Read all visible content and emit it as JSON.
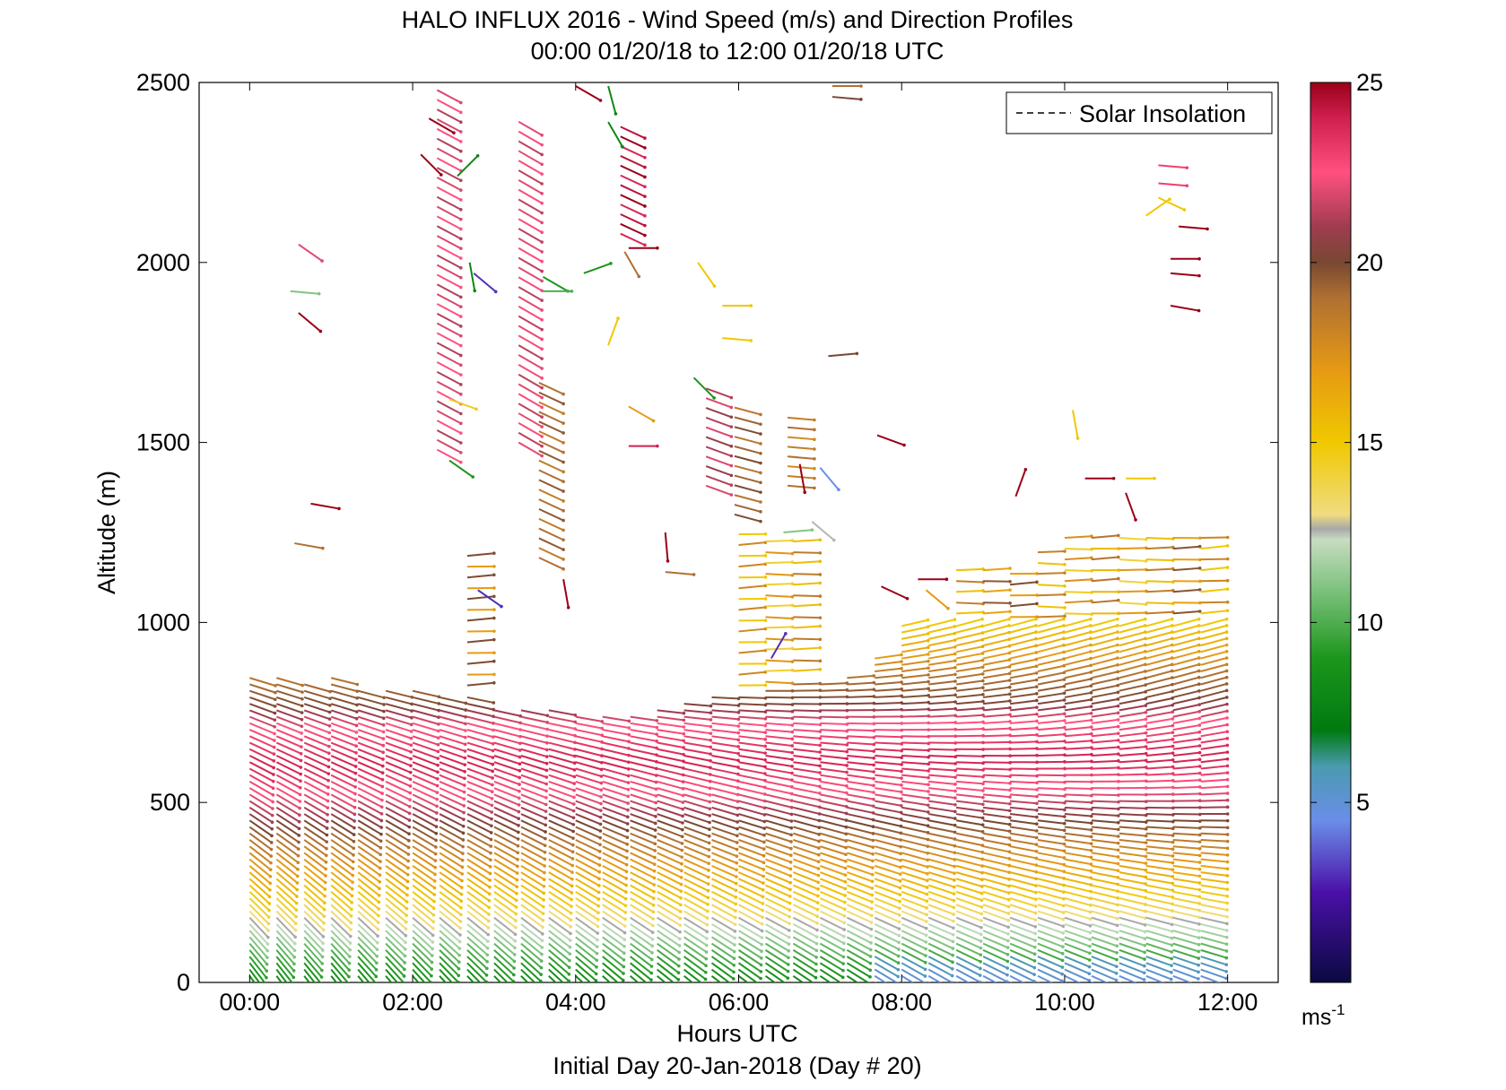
{
  "chart_data": {
    "type": "quiver",
    "title": "HALO INFLUX 2016 - Wind Speed (m/s) and Direction Profiles",
    "subtitle": "00:00 01/20/18 to 12:00 01/20/18  UTC",
    "xlabel": "Hours UTC",
    "footer": "Initial Day 20-Jan-2018 (Day # 20)",
    "ylabel": "Altitude (m)",
    "xlim": [
      -0.62,
      12.62
    ],
    "ylim": [
      0,
      2500
    ],
    "x_ticks": [
      0,
      2,
      4,
      6,
      8,
      10,
      12
    ],
    "x_tick_labels": [
      "00:00",
      "02:00",
      "04:00",
      "06:00",
      "08:00",
      "10:00",
      "12:00"
    ],
    "y_ticks": [
      0,
      500,
      1000,
      1500,
      2000,
      2500
    ],
    "y_tick_labels": [
      "0",
      "500",
      "1000",
      "1500",
      "2000",
      "2500"
    ],
    "legend": {
      "entries": [
        "Solar Insolation"
      ],
      "position": "top-right",
      "line_style": "dashed"
    },
    "colorbar": {
      "range": [
        0,
        25
      ],
      "ticks": [
        5,
        10,
        15,
        20,
        25
      ],
      "tick_labels": [
        "5",
        "10",
        "15",
        "20",
        "25"
      ],
      "unit_label": "ms",
      "unit_exponent": "-1",
      "color_stops": [
        {
          "v": 0,
          "c": "#0a0a40"
        },
        {
          "v": 2.5,
          "c": "#4a10a8"
        },
        {
          "v": 4.5,
          "c": "#6a8ee8"
        },
        {
          "v": 6,
          "c": "#4a9ab0"
        },
        {
          "v": 7,
          "c": "#007a10"
        },
        {
          "v": 9,
          "c": "#1c961c"
        },
        {
          "v": 11,
          "c": "#82c482"
        },
        {
          "v": 12.3,
          "c": "#c8dcc0"
        },
        {
          "v": 12.6,
          "c": "#a8a8a8"
        },
        {
          "v": 13,
          "c": "#f0dc80"
        },
        {
          "v": 15,
          "c": "#f0c800"
        },
        {
          "v": 17,
          "c": "#e69a14"
        },
        {
          "v": 19,
          "c": "#b07032"
        },
        {
          "v": 20,
          "c": "#784832"
        },
        {
          "v": 21,
          "c": "#a03c50"
        },
        {
          "v": 22.5,
          "c": "#ff5080"
        },
        {
          "v": 24,
          "c": "#d02050"
        },
        {
          "v": 25,
          "c": "#9a0018"
        }
      ]
    },
    "profile_times_h": [
      0,
      0.33,
      0.67,
      1,
      1.33,
      1.67,
      2,
      2.33,
      2.67,
      3,
      3.33,
      3.67,
      4,
      4.33,
      4.67,
      5,
      5.33,
      5.67,
      6,
      6.33,
      6.67,
      7,
      7.33,
      7.67,
      8,
      8.33,
      8.67,
      9,
      9.33,
      9.67,
      10,
      10.33,
      10.67,
      11,
      11.33,
      11.67
    ],
    "mixed_layer_top_m": [
      850,
      860,
      840,
      850,
      820,
      820,
      810,
      800,
      800,
      770,
      770,
      770,
      750,
      740,
      740,
      760,
      780,
      800,
      800,
      810,
      840,
      840,
      860,
      900,
      990,
      1000,
      1000,
      1000,
      990,
      990,
      1000,
      1000,
      1000,
      1000,
      1000,
      1000
    ],
    "upper_layer_top_m": [
      0,
      0,
      0,
      0,
      0,
      0,
      0,
      0,
      1200,
      0,
      0,
      0,
      0,
      0,
      0,
      0,
      0,
      0,
      1250,
      1250,
      1250,
      0,
      0,
      0,
      0,
      0,
      1150,
      1150,
      1150,
      1200,
      1250,
      1250,
      1250,
      1250,
      1250,
      1250
    ],
    "speed_profile_knots": [
      {
        "alt": 0,
        "speed": 8
      },
      {
        "alt": 80,
        "speed": 9.5
      },
      {
        "alt": 160,
        "speed": 12
      },
      {
        "alt": 260,
        "speed": 15
      },
      {
        "alt": 380,
        "speed": 18
      },
      {
        "alt": 450,
        "speed": 20
      },
      {
        "alt": 520,
        "speed": 22
      },
      {
        "alt": 620,
        "speed": 24
      },
      {
        "alt": 720,
        "speed": 22.5
      },
      {
        "alt": 780,
        "speed": 20
      },
      {
        "alt": 840,
        "speed": 19
      },
      {
        "alt": 900,
        "speed": 17
      },
      {
        "alt": 960,
        "speed": 15.5
      },
      {
        "alt": 1050,
        "speed": 14
      },
      {
        "alt": 1150,
        "speed": 16.5
      },
      {
        "alt": 1250,
        "speed": 18.5
      }
    ],
    "isolated_vectors": [
      {
        "t": 0.5,
        "alt": 1920,
        "speed": 11,
        "dir_deg": 5
      },
      {
        "t": 0.55,
        "alt": 1220,
        "speed": 19,
        "dir_deg": 10
      },
      {
        "t": 0.75,
        "alt": 1330,
        "speed": 25,
        "dir_deg": 10
      },
      {
        "t": 0.6,
        "alt": 1860,
        "speed": 25,
        "dir_deg": 40
      },
      {
        "t": 0.6,
        "alt": 2050,
        "speed": 22,
        "dir_deg": 35
      },
      {
        "t": 2.1,
        "alt": 2300,
        "speed": 25,
        "dir_deg": 45
      },
      {
        "t": 2.2,
        "alt": 2400,
        "speed": 25,
        "dir_deg": 30
      },
      {
        "t": 2.45,
        "alt": 1450,
        "speed": 9,
        "dir_deg": 35
      },
      {
        "t": 2.45,
        "alt": 1620,
        "speed": 14.5,
        "dir_deg": 20
      },
      {
        "t": 2.55,
        "alt": 2240,
        "speed": 8,
        "dir_deg": -45
      },
      {
        "t": 2.7,
        "alt": 2000,
        "speed": 8,
        "dir_deg": 80
      },
      {
        "t": 2.75,
        "alt": 1970,
        "speed": 3,
        "dir_deg": 40
      },
      {
        "t": 2.8,
        "alt": 1090,
        "speed": 3,
        "dir_deg": 35
      },
      {
        "t": 3.6,
        "alt": 1960,
        "speed": 9,
        "dir_deg": 30
      },
      {
        "t": 3.6,
        "alt": 1920,
        "speed": 10,
        "dir_deg": 0
      },
      {
        "t": 3.85,
        "alt": 1120,
        "speed": 25,
        "dir_deg": 80
      },
      {
        "t": 4.1,
        "alt": 1970,
        "speed": 9,
        "dir_deg": -20
      },
      {
        "t": 4.0,
        "alt": 2490,
        "speed": 25,
        "dir_deg": 30
      },
      {
        "t": 4.4,
        "alt": 2490,
        "speed": 8,
        "dir_deg": 75
      },
      {
        "t": 4.4,
        "alt": 2390,
        "speed": 8,
        "dir_deg": 60
      },
      {
        "t": 4.4,
        "alt": 1770,
        "speed": 15,
        "dir_deg": -70
      },
      {
        "t": 4.6,
        "alt": 2030,
        "speed": 19,
        "dir_deg": 60
      },
      {
        "t": 4.65,
        "alt": 1600,
        "speed": 17,
        "dir_deg": 30
      },
      {
        "t": 4.65,
        "alt": 1490,
        "speed": 24,
        "dir_deg": 0
      },
      {
        "t": 4.65,
        "alt": 2040,
        "speed": 25,
        "dir_deg": 0
      },
      {
        "t": 5.1,
        "alt": 1250,
        "speed": 25,
        "dir_deg": 85
      },
      {
        "t": 5.1,
        "alt": 1140,
        "speed": 19,
        "dir_deg": 5
      },
      {
        "t": 5.45,
        "alt": 1680,
        "speed": 9,
        "dir_deg": 45
      },
      {
        "t": 5.5,
        "alt": 2000,
        "speed": 15,
        "dir_deg": 55
      },
      {
        "t": 5.8,
        "alt": 1880,
        "speed": 15,
        "dir_deg": 0
      },
      {
        "t": 5.8,
        "alt": 1790,
        "speed": 15,
        "dir_deg": 5
      },
      {
        "t": 6.4,
        "alt": 900,
        "speed": 3,
        "dir_deg": -60
      },
      {
        "t": 6.55,
        "alt": 1250,
        "speed": 11,
        "dir_deg": -5
      },
      {
        "t": 6.75,
        "alt": 1440,
        "speed": 25,
        "dir_deg": 80
      },
      {
        "t": 6.9,
        "alt": 1280,
        "speed": 12.5,
        "dir_deg": 40
      },
      {
        "t": 7.0,
        "alt": 1430,
        "speed": 4.5,
        "dir_deg": 50
      },
      {
        "t": 7.15,
        "alt": 2490,
        "speed": 19,
        "dir_deg": 0
      },
      {
        "t": 7.15,
        "alt": 2460,
        "speed": 20,
        "dir_deg": 5
      },
      {
        "t": 7.1,
        "alt": 1740,
        "speed": 20,
        "dir_deg": -5
      },
      {
        "t": 7.7,
        "alt": 1520,
        "speed": 25,
        "dir_deg": 20
      },
      {
        "t": 7.75,
        "alt": 1100,
        "speed": 25,
        "dir_deg": 25
      },
      {
        "t": 8.2,
        "alt": 1120,
        "speed": 25,
        "dir_deg": 0
      },
      {
        "t": 8.3,
        "alt": 1090,
        "speed": 17,
        "dir_deg": 40
      },
      {
        "t": 9.4,
        "alt": 1350,
        "speed": 25,
        "dir_deg": -70
      },
      {
        "t": 10.1,
        "alt": 1590,
        "speed": 15,
        "dir_deg": 80
      },
      {
        "t": 10.25,
        "alt": 1400,
        "speed": 25,
        "dir_deg": 0
      },
      {
        "t": 10.75,
        "alt": 1400,
        "speed": 15,
        "dir_deg": 0
      },
      {
        "t": 10.75,
        "alt": 1360,
        "speed": 25,
        "dir_deg": 70
      },
      {
        "t": 11.0,
        "alt": 2130,
        "speed": 15,
        "dir_deg": -35
      },
      {
        "t": 11.15,
        "alt": 2270,
        "speed": 23,
        "dir_deg": 5
      },
      {
        "t": 11.15,
        "alt": 2220,
        "speed": 23,
        "dir_deg": 5
      },
      {
        "t": 11.15,
        "alt": 2180,
        "speed": 15,
        "dir_deg": 25
      },
      {
        "t": 11.4,
        "alt": 2100,
        "speed": 25,
        "dir_deg": 5
      },
      {
        "t": 11.3,
        "alt": 2010,
        "speed": 25,
        "dir_deg": 0
      },
      {
        "t": 11.3,
        "alt": 1970,
        "speed": 25,
        "dir_deg": 5
      },
      {
        "t": 11.3,
        "alt": 1880,
        "speed": 25,
        "dir_deg": 10
      }
    ],
    "upper_columns": [
      {
        "t": 2.3,
        "alt_min": 1480,
        "alt_max": 2480,
        "speed": 23,
        "dir_deg": 28
      },
      {
        "t": 3.3,
        "alt_min": 1500,
        "alt_max": 2400,
        "speed": 23,
        "dir_deg": 30
      },
      {
        "t": 3.55,
        "alt_min": 1180,
        "alt_max": 1680,
        "speed": 20,
        "dir_deg": 25
      },
      {
        "t": 4.55,
        "alt_min": 2080,
        "alt_max": 2400,
        "speed": 25,
        "dir_deg": 25
      },
      {
        "t": 5.6,
        "alt_min": 1380,
        "alt_max": 1650,
        "speed": 22,
        "dir_deg": 20
      },
      {
        "t": 5.95,
        "alt_min": 1300,
        "alt_max": 1620,
        "speed": 20,
        "dir_deg": 15
      },
      {
        "t": 6.6,
        "alt_min": 1380,
        "alt_max": 1580,
        "speed": 19,
        "dir_deg": 5
      }
    ]
  }
}
